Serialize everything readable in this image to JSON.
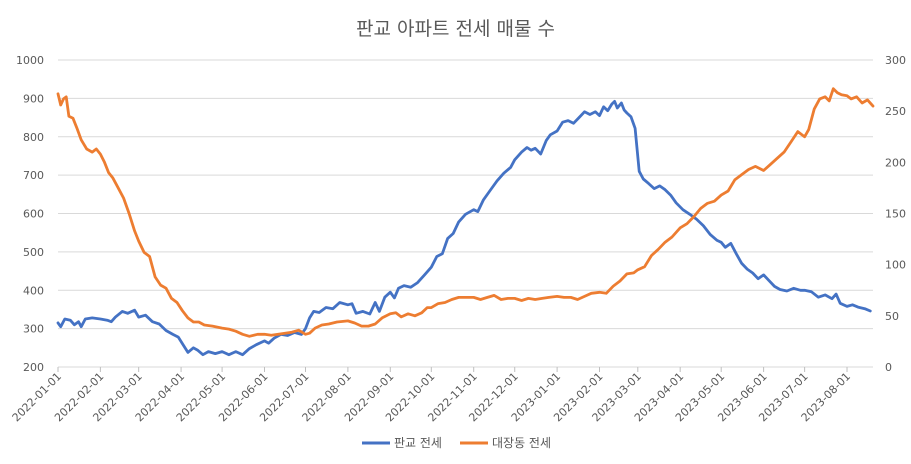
{
  "chart_data": {
    "type": "line",
    "title": "판교 아파트 전세 매물 수",
    "xlabel": "",
    "ylabel": "",
    "y2label": "",
    "ylim": [
      200,
      1000
    ],
    "y2lim": [
      0,
      300
    ],
    "yticks": [
      "200",
      "300",
      "400",
      "500",
      "600",
      "700",
      "800",
      "900",
      "1000"
    ],
    "y2ticks": [
      "0",
      "50",
      "100",
      "150",
      "200",
      "250",
      "300"
    ],
    "x_start": "2022-01-01",
    "x_end": "2023-08-20",
    "xticks": [
      "2022-01-01",
      "2022-02-01",
      "2022-03-01",
      "2022-04-01",
      "2022-05-01",
      "2022-06-01",
      "2022-07-01",
      "2022-08-01",
      "2022-09-01",
      "2022-10-01",
      "2022-11-01",
      "2022-12-01",
      "2023-01-01",
      "2023-02-01",
      "2023-03-01",
      "2023-04-01",
      "2023-05-01",
      "2023-06-01",
      "2023-07-01",
      "2023-08-01"
    ],
    "grid": true,
    "legend_position": "bottom",
    "series": [
      {
        "name": "판교 전세",
        "axis": "left",
        "color": "#4472c4",
        "points": [
          [
            "2022-01-01",
            315
          ],
          [
            "2022-01-03",
            305
          ],
          [
            "2022-01-06",
            325
          ],
          [
            "2022-01-10",
            322
          ],
          [
            "2022-01-13",
            310
          ],
          [
            "2022-01-16",
            318
          ],
          [
            "2022-01-18",
            305
          ],
          [
            "2022-01-21",
            325
          ],
          [
            "2022-01-26",
            328
          ],
          [
            "2022-02-01",
            325
          ],
          [
            "2022-02-06",
            322
          ],
          [
            "2022-02-09",
            318
          ],
          [
            "2022-02-12",
            330
          ],
          [
            "2022-02-17",
            345
          ],
          [
            "2022-02-21",
            340
          ],
          [
            "2022-02-26",
            348
          ],
          [
            "2022-03-01",
            330
          ],
          [
            "2022-03-06",
            335
          ],
          [
            "2022-03-11",
            318
          ],
          [
            "2022-03-16",
            312
          ],
          [
            "2022-03-21",
            295
          ],
          [
            "2022-03-26",
            285
          ],
          [
            "2022-03-30",
            278
          ],
          [
            "2022-04-03",
            255
          ],
          [
            "2022-04-06",
            238
          ],
          [
            "2022-04-10",
            250
          ],
          [
            "2022-04-13",
            244
          ],
          [
            "2022-04-17",
            232
          ],
          [
            "2022-04-21",
            240
          ],
          [
            "2022-04-26",
            235
          ],
          [
            "2022-05-01",
            240
          ],
          [
            "2022-05-06",
            232
          ],
          [
            "2022-05-11",
            240
          ],
          [
            "2022-05-16",
            232
          ],
          [
            "2022-05-21",
            248
          ],
          [
            "2022-05-26",
            258
          ],
          [
            "2022-06-01",
            268
          ],
          [
            "2022-06-04",
            262
          ],
          [
            "2022-06-08",
            275
          ],
          [
            "2022-06-13",
            285
          ],
          [
            "2022-06-18",
            282
          ],
          [
            "2022-06-23",
            290
          ],
          [
            "2022-06-28",
            285
          ],
          [
            "2022-07-01",
            300
          ],
          [
            "2022-07-04",
            328
          ],
          [
            "2022-07-07",
            345
          ],
          [
            "2022-07-11",
            342
          ],
          [
            "2022-07-16",
            355
          ],
          [
            "2022-07-21",
            352
          ],
          [
            "2022-07-26",
            368
          ],
          [
            "2022-08-01",
            362
          ],
          [
            "2022-08-04",
            365
          ],
          [
            "2022-08-07",
            340
          ],
          [
            "2022-08-12",
            345
          ],
          [
            "2022-08-17",
            338
          ],
          [
            "2022-08-21",
            368
          ],
          [
            "2022-08-24",
            345
          ],
          [
            "2022-08-28",
            382
          ],
          [
            "2022-09-01",
            395
          ],
          [
            "2022-09-04",
            380
          ],
          [
            "2022-09-07",
            405
          ],
          [
            "2022-09-11",
            412
          ],
          [
            "2022-09-16",
            408
          ],
          [
            "2022-09-21",
            420
          ],
          [
            "2022-09-26",
            440
          ],
          [
            "2022-10-01",
            460
          ],
          [
            "2022-10-05",
            488
          ],
          [
            "2022-10-09",
            495
          ],
          [
            "2022-10-13",
            535
          ],
          [
            "2022-10-17",
            548
          ],
          [
            "2022-10-21",
            578
          ],
          [
            "2022-10-26",
            598
          ],
          [
            "2022-11-01",
            610
          ],
          [
            "2022-11-04",
            605
          ],
          [
            "2022-11-08",
            635
          ],
          [
            "2022-11-13",
            660
          ],
          [
            "2022-11-18",
            685
          ],
          [
            "2022-11-23",
            705
          ],
          [
            "2022-11-28",
            720
          ],
          [
            "2022-12-01",
            740
          ],
          [
            "2022-12-06",
            760
          ],
          [
            "2022-12-10",
            772
          ],
          [
            "2022-12-13",
            765
          ],
          [
            "2022-12-16",
            770
          ],
          [
            "2022-12-20",
            755
          ],
          [
            "2022-12-24",
            790
          ],
          [
            "2022-12-27",
            805
          ],
          [
            "2023-01-01",
            815
          ],
          [
            "2023-01-05",
            838
          ],
          [
            "2023-01-09",
            842
          ],
          [
            "2023-01-13",
            835
          ],
          [
            "2023-01-17",
            850
          ],
          [
            "2023-01-21",
            865
          ],
          [
            "2023-01-25",
            858
          ],
          [
            "2023-01-29",
            865
          ],
          [
            "2023-02-01",
            855
          ],
          [
            "2023-02-04",
            878
          ],
          [
            "2023-02-07",
            868
          ],
          [
            "2023-02-10",
            885
          ],
          [
            "2023-02-12",
            892
          ],
          [
            "2023-02-14",
            875
          ],
          [
            "2023-02-17",
            888
          ],
          [
            "2023-02-19",
            870
          ],
          [
            "2023-02-21",
            862
          ],
          [
            "2023-02-24",
            852
          ],
          [
            "2023-02-27",
            822
          ],
          [
            "2023-03-02",
            710
          ],
          [
            "2023-03-05",
            690
          ],
          [
            "2023-03-09",
            678
          ],
          [
            "2023-03-13",
            665
          ],
          [
            "2023-03-17",
            672
          ],
          [
            "2023-03-21",
            662
          ],
          [
            "2023-03-25",
            648
          ],
          [
            "2023-03-29",
            628
          ],
          [
            "2023-04-03",
            610
          ],
          [
            "2023-04-08",
            598
          ],
          [
            "2023-04-13",
            585
          ],
          [
            "2023-04-18",
            568
          ],
          [
            "2023-04-23",
            545
          ],
          [
            "2023-04-28",
            530
          ],
          [
            "2023-05-01",
            525
          ],
          [
            "2023-05-04",
            512
          ],
          [
            "2023-05-08",
            522
          ],
          [
            "2023-05-12",
            495
          ],
          [
            "2023-05-16",
            470
          ],
          [
            "2023-05-20",
            455
          ],
          [
            "2023-05-24",
            445
          ],
          [
            "2023-05-28",
            430
          ],
          [
            "2023-06-01",
            440
          ],
          [
            "2023-06-05",
            425
          ],
          [
            "2023-06-09",
            410
          ],
          [
            "2023-06-13",
            402
          ],
          [
            "2023-06-18",
            398
          ],
          [
            "2023-06-23",
            405
          ],
          [
            "2023-06-28",
            400
          ],
          [
            "2023-07-01",
            400
          ],
          [
            "2023-07-06",
            396
          ],
          [
            "2023-07-11",
            382
          ],
          [
            "2023-07-16",
            388
          ],
          [
            "2023-07-21",
            378
          ],
          [
            "2023-07-24",
            390
          ],
          [
            "2023-07-27",
            366
          ],
          [
            "2023-08-01",
            358
          ],
          [
            "2023-08-05",
            362
          ],
          [
            "2023-08-09",
            356
          ],
          [
            "2023-08-14",
            352
          ],
          [
            "2023-08-18",
            346
          ]
        ]
      },
      {
        "name": "대장동 전세",
        "axis": "right",
        "color": "#ed7d31",
        "points": [
          [
            "2022-01-01",
            267
          ],
          [
            "2022-01-03",
            256
          ],
          [
            "2022-01-05",
            262
          ],
          [
            "2022-01-07",
            264
          ],
          [
            "2022-01-09",
            245
          ],
          [
            "2022-01-12",
            243
          ],
          [
            "2022-01-15",
            233
          ],
          [
            "2022-01-18",
            222
          ],
          [
            "2022-01-22",
            213
          ],
          [
            "2022-01-26",
            210
          ],
          [
            "2022-01-29",
            213
          ],
          [
            "2022-02-01",
            208
          ],
          [
            "2022-02-04",
            200
          ],
          [
            "2022-02-07",
            190
          ],
          [
            "2022-02-10",
            185
          ],
          [
            "2022-02-14",
            175
          ],
          [
            "2022-02-18",
            165
          ],
          [
            "2022-02-22",
            150
          ],
          [
            "2022-02-26",
            133
          ],
          [
            "2022-03-01",
            123
          ],
          [
            "2022-03-05",
            112
          ],
          [
            "2022-03-09",
            108
          ],
          [
            "2022-03-13",
            88
          ],
          [
            "2022-03-17",
            80
          ],
          [
            "2022-03-21",
            77
          ],
          [
            "2022-03-25",
            67
          ],
          [
            "2022-03-29",
            63
          ],
          [
            "2022-04-02",
            55
          ],
          [
            "2022-04-06",
            48
          ],
          [
            "2022-04-10",
            44
          ],
          [
            "2022-04-14",
            44
          ],
          [
            "2022-04-18",
            41
          ],
          [
            "2022-04-24",
            40
          ],
          [
            "2022-05-01",
            38
          ],
          [
            "2022-05-06",
            37
          ],
          [
            "2022-05-11",
            35
          ],
          [
            "2022-05-16",
            32
          ],
          [
            "2022-05-21",
            30
          ],
          [
            "2022-05-27",
            32
          ],
          [
            "2022-06-01",
            32
          ],
          [
            "2022-06-06",
            31
          ],
          [
            "2022-06-11",
            32
          ],
          [
            "2022-06-16",
            33
          ],
          [
            "2022-06-21",
            34
          ],
          [
            "2022-06-26",
            36
          ],
          [
            "2022-07-01",
            32
          ],
          [
            "2022-07-04",
            33
          ],
          [
            "2022-07-08",
            38
          ],
          [
            "2022-07-13",
            41
          ],
          [
            "2022-07-18",
            42
          ],
          [
            "2022-07-24",
            44
          ],
          [
            "2022-08-01",
            45
          ],
          [
            "2022-08-06",
            43
          ],
          [
            "2022-08-11",
            40
          ],
          [
            "2022-08-16",
            40
          ],
          [
            "2022-08-21",
            42
          ],
          [
            "2022-08-26",
            48
          ],
          [
            "2022-09-01",
            52
          ],
          [
            "2022-09-05",
            53
          ],
          [
            "2022-09-09",
            49
          ],
          [
            "2022-09-14",
            52
          ],
          [
            "2022-09-19",
            50
          ],
          [
            "2022-09-24",
            53
          ],
          [
            "2022-09-28",
            58
          ],
          [
            "2022-10-01",
            58
          ],
          [
            "2022-10-06",
            62
          ],
          [
            "2022-10-11",
            63
          ],
          [
            "2022-10-16",
            66
          ],
          [
            "2022-10-21",
            68
          ],
          [
            "2022-10-26",
            68
          ],
          [
            "2022-11-01",
            68
          ],
          [
            "2022-11-06",
            66
          ],
          [
            "2022-11-11",
            68
          ],
          [
            "2022-11-16",
            70
          ],
          [
            "2022-11-21",
            66
          ],
          [
            "2022-11-26",
            67
          ],
          [
            "2022-12-01",
            67
          ],
          [
            "2022-12-06",
            65
          ],
          [
            "2022-12-11",
            67
          ],
          [
            "2022-12-16",
            66
          ],
          [
            "2022-12-21",
            67
          ],
          [
            "2022-12-26",
            68
          ],
          [
            "2023-01-01",
            69
          ],
          [
            "2023-01-06",
            68
          ],
          [
            "2023-01-11",
            68
          ],
          [
            "2023-01-16",
            66
          ],
          [
            "2023-01-21",
            69
          ],
          [
            "2023-01-26",
            72
          ],
          [
            "2023-02-01",
            73
          ],
          [
            "2023-02-06",
            72
          ],
          [
            "2023-02-11",
            79
          ],
          [
            "2023-02-16",
            84
          ],
          [
            "2023-02-21",
            91
          ],
          [
            "2023-02-26",
            92
          ],
          [
            "2023-03-01",
            95
          ],
          [
            "2023-03-06",
            98
          ],
          [
            "2023-03-11",
            109
          ],
          [
            "2023-03-16",
            115
          ],
          [
            "2023-03-21",
            122
          ],
          [
            "2023-03-26",
            127
          ],
          [
            "2023-04-01",
            136
          ],
          [
            "2023-04-06",
            140
          ],
          [
            "2023-04-11",
            147
          ],
          [
            "2023-04-16",
            155
          ],
          [
            "2023-04-21",
            160
          ],
          [
            "2023-04-26",
            162
          ],
          [
            "2023-05-01",
            168
          ],
          [
            "2023-05-06",
            172
          ],
          [
            "2023-05-11",
            183
          ],
          [
            "2023-05-16",
            188
          ],
          [
            "2023-05-21",
            193
          ],
          [
            "2023-05-26",
            196
          ],
          [
            "2023-06-01",
            192
          ],
          [
            "2023-06-06",
            198
          ],
          [
            "2023-06-11",
            204
          ],
          [
            "2023-06-16",
            210
          ],
          [
            "2023-06-21",
            220
          ],
          [
            "2023-06-26",
            230
          ],
          [
            "2023-07-01",
            225
          ],
          [
            "2023-07-04",
            232
          ],
          [
            "2023-07-08",
            252
          ],
          [
            "2023-07-12",
            262
          ],
          [
            "2023-07-16",
            264
          ],
          [
            "2023-07-19",
            260
          ],
          [
            "2023-07-22",
            272
          ],
          [
            "2023-07-25",
            268
          ],
          [
            "2023-07-28",
            266
          ],
          [
            "2023-08-01",
            265
          ],
          [
            "2023-08-04",
            262
          ],
          [
            "2023-08-08",
            264
          ],
          [
            "2023-08-12",
            258
          ],
          [
            "2023-08-16",
            261
          ],
          [
            "2023-08-20",
            255
          ]
        ]
      }
    ]
  }
}
